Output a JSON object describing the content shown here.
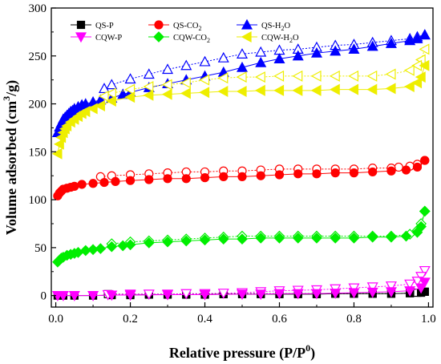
{
  "chart_data": {
    "type": "scatter",
    "xlabel": {
      "main": "Relative pressure (P/P",
      "sup": "0",
      "tail": ")"
    },
    "ylabel": {
      "main": "Volume adsorbed (cm",
      "sup": "3",
      "tail": "/g)"
    },
    "xlim": [
      0.0,
      1.0
    ],
    "ylim": [
      0,
      300
    ],
    "xticks": [
      "0.0",
      "0.2",
      "0.4",
      "0.6",
      "0.8",
      "1.0"
    ],
    "yticks": [
      "0",
      "50",
      "100",
      "150",
      "200",
      "250",
      "300"
    ],
    "grid": false,
    "legend_position": "top-left",
    "series": [
      {
        "name": "QS-P",
        "name_sub": "",
        "color": "#000000",
        "marker": "square",
        "adsorption": [
          [
            0.005,
            0
          ],
          [
            0.02,
            0
          ],
          [
            0.05,
            0
          ],
          [
            0.1,
            0
          ],
          [
            0.15,
            0.5
          ],
          [
            0.2,
            0.5
          ],
          [
            0.25,
            1
          ],
          [
            0.3,
            1
          ],
          [
            0.35,
            1
          ],
          [
            0.4,
            1
          ],
          [
            0.45,
            1.5
          ],
          [
            0.5,
            1.5
          ],
          [
            0.55,
            1.5
          ],
          [
            0.6,
            1.5
          ],
          [
            0.65,
            1.5
          ],
          [
            0.7,
            1.5
          ],
          [
            0.75,
            2
          ],
          [
            0.8,
            2
          ],
          [
            0.85,
            2
          ],
          [
            0.9,
            2
          ],
          [
            0.95,
            2.5
          ],
          [
            0.98,
            3
          ],
          [
            0.99,
            4
          ]
        ],
        "desorption": [
          [
            0.99,
            4
          ],
          [
            0.97,
            3
          ],
          [
            0.95,
            2.5
          ],
          [
            0.9,
            2
          ],
          [
            0.85,
            2
          ],
          [
            0.8,
            2
          ],
          [
            0.75,
            2
          ],
          [
            0.7,
            2
          ],
          [
            0.65,
            2
          ],
          [
            0.6,
            2
          ],
          [
            0.55,
            2
          ],
          [
            0.5,
            2
          ],
          [
            0.45,
            1.5
          ],
          [
            0.4,
            1.5
          ],
          [
            0.35,
            1.5
          ],
          [
            0.3,
            1.5
          ],
          [
            0.25,
            1.5
          ],
          [
            0.2,
            1.5
          ],
          [
            0.14,
            1.5
          ]
        ]
      },
      {
        "name": "QS-CO",
        "name_sub": "2",
        "color": "#ff0000",
        "marker": "circle",
        "adsorption": [
          [
            0.005,
            104
          ],
          [
            0.01,
            107
          ],
          [
            0.015,
            109
          ],
          [
            0.02,
            111
          ],
          [
            0.03,
            112
          ],
          [
            0.04,
            113
          ],
          [
            0.05,
            114
          ],
          [
            0.07,
            116
          ],
          [
            0.1,
            117
          ],
          [
            0.13,
            118
          ],
          [
            0.16,
            119
          ],
          [
            0.2,
            120
          ],
          [
            0.25,
            121
          ],
          [
            0.3,
            122
          ],
          [
            0.35,
            122
          ],
          [
            0.4,
            123
          ],
          [
            0.45,
            124
          ],
          [
            0.5,
            124
          ],
          [
            0.55,
            125
          ],
          [
            0.6,
            126
          ],
          [
            0.65,
            127
          ],
          [
            0.7,
            127
          ],
          [
            0.75,
            128
          ],
          [
            0.8,
            128
          ],
          [
            0.85,
            129
          ],
          [
            0.9,
            130
          ],
          [
            0.94,
            131
          ],
          [
            0.97,
            134
          ],
          [
            0.99,
            141
          ]
        ],
        "desorption": [
          [
            0.99,
            141
          ],
          [
            0.97,
            137
          ],
          [
            0.95,
            135
          ],
          [
            0.92,
            134
          ],
          [
            0.9,
            133
          ],
          [
            0.85,
            133
          ],
          [
            0.8,
            132
          ],
          [
            0.75,
            132
          ],
          [
            0.7,
            132
          ],
          [
            0.65,
            132
          ],
          [
            0.6,
            132
          ],
          [
            0.55,
            131
          ],
          [
            0.5,
            130
          ],
          [
            0.45,
            130
          ],
          [
            0.4,
            129
          ],
          [
            0.35,
            129
          ],
          [
            0.3,
            128
          ],
          [
            0.25,
            127
          ],
          [
            0.2,
            126
          ],
          [
            0.15,
            125
          ],
          [
            0.12,
            124
          ]
        ]
      },
      {
        "name": "QS-H",
        "name_sub": "2",
        "name_tail": "O",
        "color": "#0000ff",
        "marker": "triangle-up",
        "adsorption": [
          [
            0.005,
            170
          ],
          [
            0.01,
            176
          ],
          [
            0.015,
            180
          ],
          [
            0.02,
            184
          ],
          [
            0.025,
            186
          ],
          [
            0.03,
            188
          ],
          [
            0.035,
            190
          ],
          [
            0.04,
            192
          ],
          [
            0.045,
            193
          ],
          [
            0.05,
            195
          ],
          [
            0.06,
            197
          ],
          [
            0.07,
            199
          ],
          [
            0.08,
            200
          ],
          [
            0.1,
            202
          ],
          [
            0.12,
            204
          ],
          [
            0.15,
            206
          ],
          [
            0.18,
            210
          ],
          [
            0.2,
            212
          ],
          [
            0.25,
            217
          ],
          [
            0.3,
            221
          ],
          [
            0.35,
            225
          ],
          [
            0.4,
            229
          ],
          [
            0.45,
            233
          ],
          [
            0.5,
            238
          ],
          [
            0.55,
            243
          ],
          [
            0.6,
            247
          ],
          [
            0.65,
            250
          ],
          [
            0.7,
            253
          ],
          [
            0.75,
            255
          ],
          [
            0.8,
            257
          ],
          [
            0.85,
            260
          ],
          [
            0.9,
            263
          ],
          [
            0.95,
            266
          ],
          [
            0.97,
            268
          ],
          [
            0.99,
            272
          ]
        ],
        "desorption": [
          [
            0.99,
            272
          ],
          [
            0.97,
            270
          ],
          [
            0.95,
            268
          ],
          [
            0.9,
            266
          ],
          [
            0.85,
            264
          ],
          [
            0.8,
            262
          ],
          [
            0.75,
            261
          ],
          [
            0.7,
            259
          ],
          [
            0.65,
            257
          ],
          [
            0.6,
            256
          ],
          [
            0.55,
            254
          ],
          [
            0.5,
            252
          ],
          [
            0.45,
            248
          ],
          [
            0.4,
            244
          ],
          [
            0.35,
            240
          ],
          [
            0.3,
            236
          ],
          [
            0.25,
            231
          ],
          [
            0.2,
            226
          ],
          [
            0.15,
            220
          ],
          [
            0.13,
            216
          ]
        ]
      },
      {
        "name": "CQW-P",
        "name_sub": "",
        "color": "#ff00ff",
        "marker": "triangle-down",
        "adsorption": [
          [
            0.005,
            0
          ],
          [
            0.02,
            0
          ],
          [
            0.05,
            0
          ],
          [
            0.1,
            0
          ],
          [
            0.15,
            0.5
          ],
          [
            0.2,
            0.5
          ],
          [
            0.3,
            1
          ],
          [
            0.4,
            1
          ],
          [
            0.5,
            1.5
          ],
          [
            0.55,
            1.5
          ],
          [
            0.6,
            2
          ],
          [
            0.65,
            2
          ],
          [
            0.7,
            2
          ],
          [
            0.75,
            2.5
          ],
          [
            0.8,
            3
          ],
          [
            0.85,
            3.5
          ],
          [
            0.9,
            4
          ],
          [
            0.95,
            5
          ],
          [
            0.98,
            8
          ],
          [
            0.99,
            14
          ]
        ],
        "desorption": [
          [
            0.99,
            26
          ],
          [
            0.98,
            20
          ],
          [
            0.97,
            15
          ],
          [
            0.95,
            12
          ],
          [
            0.9,
            10
          ],
          [
            0.85,
            9
          ],
          [
            0.8,
            8
          ],
          [
            0.75,
            7
          ],
          [
            0.7,
            6
          ],
          [
            0.65,
            5.5
          ],
          [
            0.6,
            5
          ],
          [
            0.55,
            4
          ],
          [
            0.5,
            3
          ],
          [
            0.45,
            2.5
          ],
          [
            0.4,
            2
          ],
          [
            0.35,
            2
          ],
          [
            0.3,
            1.5
          ],
          [
            0.25,
            1.5
          ],
          [
            0.2,
            1.5
          ],
          [
            0.14,
            1
          ]
        ]
      },
      {
        "name": "CQW-CO",
        "name_sub": "2",
        "color": "#00ee00",
        "marker": "diamond",
        "adsorption": [
          [
            0.005,
            35
          ],
          [
            0.01,
            37
          ],
          [
            0.015,
            39
          ],
          [
            0.02,
            40
          ],
          [
            0.03,
            42
          ],
          [
            0.04,
            43
          ],
          [
            0.05,
            44
          ],
          [
            0.06,
            45
          ],
          [
            0.08,
            47
          ],
          [
            0.1,
            48
          ],
          [
            0.12,
            49
          ],
          [
            0.15,
            51
          ],
          [
            0.18,
            52
          ],
          [
            0.2,
            53
          ],
          [
            0.25,
            55
          ],
          [
            0.3,
            56
          ],
          [
            0.35,
            57
          ],
          [
            0.4,
            58
          ],
          [
            0.45,
            59
          ],
          [
            0.5,
            59
          ],
          [
            0.55,
            60
          ],
          [
            0.6,
            60
          ],
          [
            0.65,
            60
          ],
          [
            0.7,
            60
          ],
          [
            0.75,
            60
          ],
          [
            0.8,
            60
          ],
          [
            0.85,
            61
          ],
          [
            0.9,
            61
          ],
          [
            0.94,
            62
          ],
          [
            0.97,
            66
          ],
          [
            0.98,
            72
          ],
          [
            0.99,
            88
          ]
        ],
        "desorption": [
          [
            0.99,
            88
          ],
          [
            0.98,
            75
          ],
          [
            0.97,
            68
          ],
          [
            0.95,
            64
          ],
          [
            0.9,
            62
          ],
          [
            0.85,
            62
          ],
          [
            0.8,
            62
          ],
          [
            0.75,
            62
          ],
          [
            0.7,
            62
          ],
          [
            0.65,
            62
          ],
          [
            0.6,
            62
          ],
          [
            0.55,
            62
          ],
          [
            0.5,
            62
          ],
          [
            0.45,
            61
          ],
          [
            0.4,
            60
          ],
          [
            0.35,
            59
          ],
          [
            0.3,
            58
          ],
          [
            0.25,
            57
          ],
          [
            0.2,
            56
          ],
          [
            0.15,
            54
          ]
        ]
      },
      {
        "name": "CQW-H",
        "name_sub": "2",
        "name_tail": "O",
        "color": "#eeee00",
        "marker": "triangle-left",
        "adsorption": [
          [
            0.005,
            148
          ],
          [
            0.01,
            158
          ],
          [
            0.015,
            165
          ],
          [
            0.02,
            170
          ],
          [
            0.025,
            174
          ],
          [
            0.03,
            177
          ],
          [
            0.04,
            181
          ],
          [
            0.05,
            184
          ],
          [
            0.06,
            187
          ],
          [
            0.07,
            190
          ],
          [
            0.08,
            192
          ],
          [
            0.1,
            195
          ],
          [
            0.12,
            198
          ],
          [
            0.15,
            203
          ],
          [
            0.2,
            207
          ],
          [
            0.25,
            209
          ],
          [
            0.3,
            210
          ],
          [
            0.35,
            211
          ],
          [
            0.4,
            212
          ],
          [
            0.45,
            213
          ],
          [
            0.5,
            213
          ],
          [
            0.55,
            214
          ],
          [
            0.6,
            214
          ],
          [
            0.65,
            214
          ],
          [
            0.7,
            214
          ],
          [
            0.75,
            215
          ],
          [
            0.8,
            215
          ],
          [
            0.85,
            215
          ],
          [
            0.9,
            216
          ],
          [
            0.95,
            218
          ],
          [
            0.97,
            222
          ],
          [
            0.98,
            228
          ],
          [
            0.99,
            240
          ]
        ],
        "desorption": [
          [
            0.99,
            257
          ],
          [
            0.98,
            246
          ],
          [
            0.97,
            240
          ],
          [
            0.95,
            235
          ],
          [
            0.9,
            231
          ],
          [
            0.85,
            229
          ],
          [
            0.8,
            229
          ],
          [
            0.75,
            229
          ],
          [
            0.7,
            229
          ],
          [
            0.65,
            229
          ],
          [
            0.6,
            229
          ],
          [
            0.55,
            228
          ],
          [
            0.5,
            228
          ],
          [
            0.45,
            227
          ],
          [
            0.4,
            225
          ],
          [
            0.35,
            222
          ],
          [
            0.3,
            220
          ],
          [
            0.25,
            218
          ],
          [
            0.2,
            215
          ],
          [
            0.15,
            211
          ],
          [
            0.13,
            208
          ]
        ]
      }
    ]
  }
}
